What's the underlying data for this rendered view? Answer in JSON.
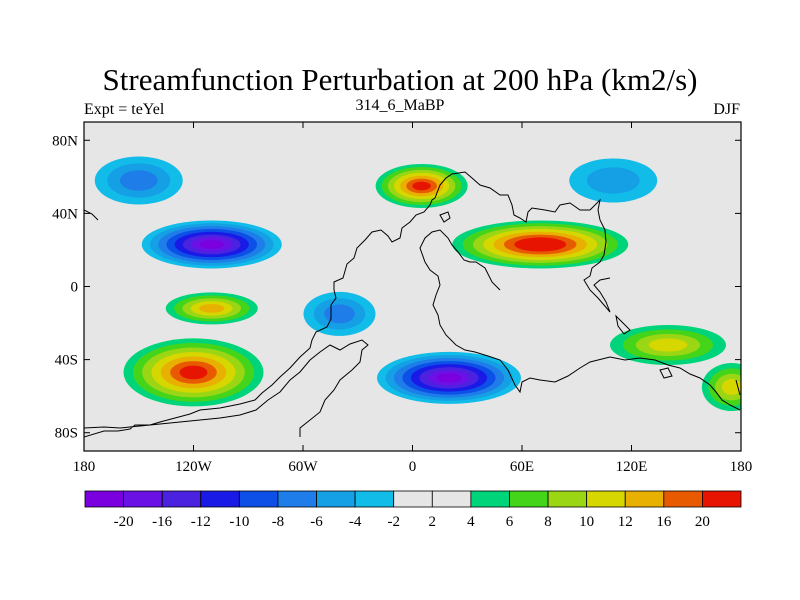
{
  "title": "Streamfunction Perturbation at 200 hPa (km2/s)",
  "subtitle_left": "Expt = teYel",
  "subtitle_center": "314_6_MaBP",
  "subtitle_right": "DJF",
  "chart_data": {
    "type": "heatmap",
    "projection": "cylindrical-equidistant",
    "variable": "streamfunction perturbation",
    "units": "km2/s",
    "level_hPa": 200,
    "xlim": [
      -180,
      180
    ],
    "ylim": [
      -90,
      90
    ],
    "x_ticks": [
      {
        "value": -180,
        "label": "180"
      },
      {
        "value": -120,
        "label": "120W"
      },
      {
        "value": -60,
        "label": "60W"
      },
      {
        "value": 0,
        "label": "0"
      },
      {
        "value": 60,
        "label": "60E"
      },
      {
        "value": 120,
        "label": "120E"
      },
      {
        "value": 180,
        "label": "180"
      }
    ],
    "y_ticks": [
      {
        "value": 80,
        "label": "80N"
      },
      {
        "value": 40,
        "label": "40N"
      },
      {
        "value": 0,
        "label": "0"
      },
      {
        "value": -40,
        "label": "40S"
      },
      {
        "value": -80,
        "label": "80S"
      }
    ],
    "colorbar": {
      "levels": [
        "-20",
        "-16",
        "-12",
        "-10",
        "-8",
        "-6",
        "-4",
        "-2",
        "2",
        "4",
        "6",
        "8",
        "10",
        "12",
        "16",
        "20"
      ],
      "colors": [
        "#7a00e0",
        "#6a12e6",
        "#4b22e0",
        "#1a1ae6",
        "#0d50e8",
        "#1e7de8",
        "#15a0e6",
        "#12bce8",
        "#e6e6e6",
        "#00d47a",
        "#44d41a",
        "#9ad614",
        "#d6d600",
        "#e8b000",
        "#e85a00",
        "#e61400"
      ]
    },
    "features": [
      {
        "type": "trough",
        "lon": -110,
        "lat": 23,
        "value": -20
      },
      {
        "type": "trough",
        "lon": 20,
        "lat": -50,
        "value": -20
      },
      {
        "type": "trough",
        "lon": -150,
        "lat": 58,
        "value": -6
      },
      {
        "type": "trough",
        "lon": 110,
        "lat": 58,
        "value": -4
      },
      {
        "type": "trough",
        "lon": -40,
        "lat": -15,
        "value": -6
      },
      {
        "type": "ridge",
        "lon": 70,
        "lat": 23,
        "value": 20
      },
      {
        "type": "ridge",
        "lon": 5,
        "lat": 55,
        "value": 16
      },
      {
        "type": "ridge",
        "lon": -120,
        "lat": -47,
        "value": 16
      },
      {
        "type": "ridge",
        "lon": -110,
        "lat": -12,
        "value": 10
      },
      {
        "type": "ridge",
        "lon": 140,
        "lat": -32,
        "value": 8
      },
      {
        "type": "ridge",
        "lon": 175,
        "lat": -55,
        "value": 8
      }
    ]
  }
}
